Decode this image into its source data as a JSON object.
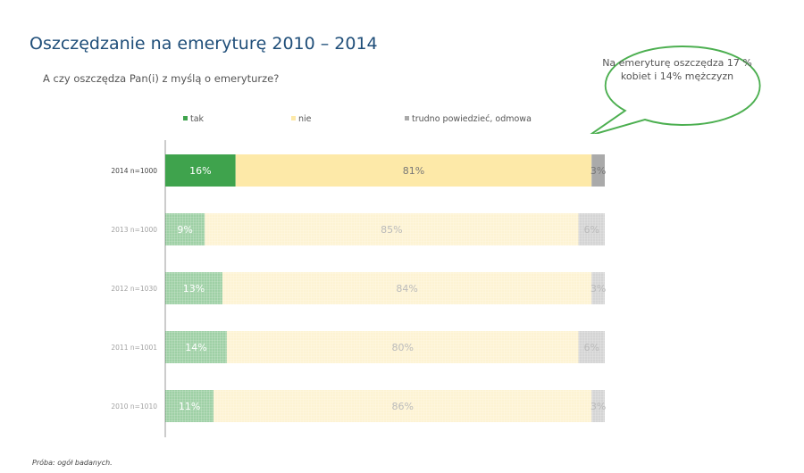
{
  "title": "Oszczędzanie na emeryturę 2010 – 2014",
  "subtitle": "A czy oszczędza Pan(i)  z myślą o emeryturze?",
  "callout": "Na emeryturę oszczędza 17 % kobiet i 14% mężczyzn",
  "footnote": "Próba: ogół badanych.",
  "chart_data": {
    "type": "bar",
    "orientation": "horizontal-stacked-100",
    "categories": [
      "2014 n=1000",
      "2013 n=1000",
      "2012 n=1030",
      "2011 n=1001",
      "2010 n=1010"
    ],
    "series": [
      {
        "name": "tak",
        "color": "#3fa34d",
        "values": [
          16,
          9,
          13,
          14,
          11
        ]
      },
      {
        "name": "nie",
        "color": "#fde9a8",
        "values": [
          81,
          85,
          84,
          80,
          86
        ]
      },
      {
        "name": "trudno powiedzieć, odmowa",
        "color": "#aaaaaa",
        "values": [
          3,
          6,
          3,
          6,
          3
        ]
      }
    ],
    "labels": [
      [
        "16%",
        "81%",
        "3%"
      ],
      [
        "9%",
        "85%",
        "6%"
      ],
      [
        "13%",
        "84%",
        "3%"
      ],
      [
        "14%",
        "80%",
        "6%"
      ],
      [
        "11%",
        "86%",
        "3%"
      ]
    ],
    "highlighted_category": "2014 n=1000",
    "legend": "top",
    "xlim": [
      0,
      100
    ]
  }
}
